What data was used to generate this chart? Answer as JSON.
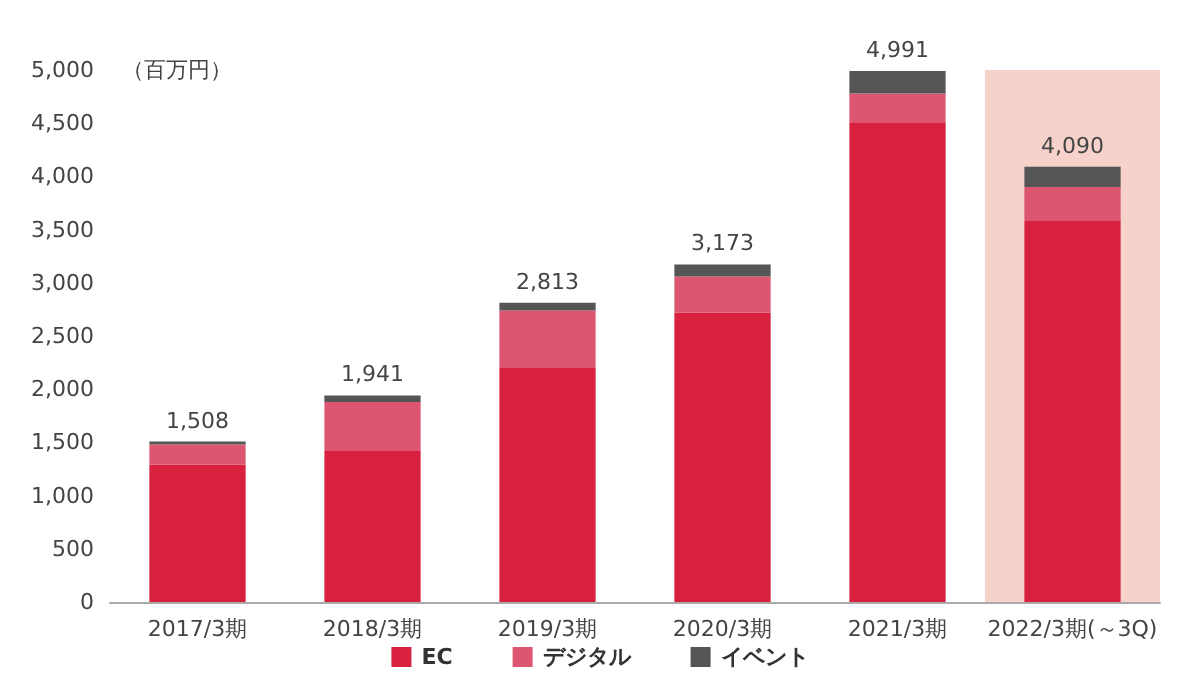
{
  "chart_data": {
    "type": "bar",
    "stacked": true,
    "ylabel": "（百万円）",
    "categories": [
      "2017/3期",
      "2018/3期",
      "2019/3期",
      "2020/3期",
      "2021/3期",
      "2022/3期(～3Q)"
    ],
    "series": [
      {
        "name": "EC",
        "color": "#d7213f",
        "values": [
          1290,
          1420,
          2200,
          2720,
          4510,
          3580
        ]
      },
      {
        "name": "デジタル",
        "color": "#dc5672",
        "values": [
          190,
          460,
          540,
          340,
          270,
          320
        ]
      },
      {
        "name": "イベント",
        "color": "#555555",
        "values": [
          28,
          61,
          73,
          113,
          211,
          190
        ]
      }
    ],
    "totals": [
      "1,508",
      "1,941",
      "2,813",
      "3,173",
      "4,991",
      "4,090"
    ],
    "ylim": [
      0,
      5000
    ],
    "yticks": [
      0,
      500,
      {
        "value": 1000,
        "label": "1,000"
      },
      {
        "value": 1500,
        "label": "1,500"
      },
      {
        "value": 2000,
        "label": "2,000"
      },
      {
        "value": 2500,
        "label": "2,500"
      },
      {
        "value": 3000,
        "label": "3,000"
      },
      {
        "value": 3500,
        "label": "3,500"
      },
      {
        "value": 4000,
        "label": "4,000"
      },
      {
        "value": 4500,
        "label": "4,500"
      },
      {
        "value": 5000,
        "label": "5,000"
      }
    ],
    "bands": [
      {
        "axis": "x",
        "from": "2022/3期(～3Q)",
        "to": "2022/3期(～3Q)",
        "color": "#f6d2ca"
      }
    ],
    "grid": false,
    "legend": "bottom"
  }
}
